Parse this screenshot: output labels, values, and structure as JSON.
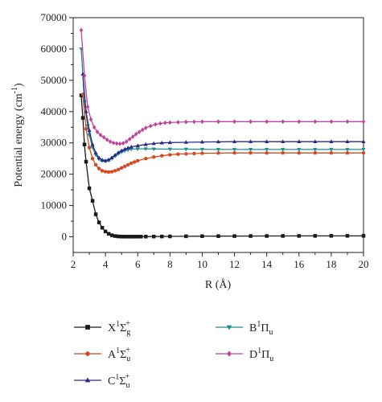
{
  "chart_data": {
    "type": "line",
    "title": "",
    "xlabel": "R (Å)",
    "ylabel": "Potential energy (cm",
    "ylabel_sup": "-1",
    "ylabel_close": ")",
    "xlim": [
      2,
      20
    ],
    "ylim": [
      -5000,
      70000
    ],
    "xticks": [
      2,
      4,
      6,
      8,
      10,
      12,
      14,
      16,
      18,
      20
    ],
    "xtick_labels": [
      "2",
      "4",
      "6",
      "8",
      "10",
      "12",
      "14",
      "16",
      "18",
      "20"
    ],
    "yticks": [
      0,
      10000,
      20000,
      30000,
      40000,
      50000,
      60000,
      70000
    ],
    "ytick_labels": [
      "0",
      "10000",
      "20000",
      "30000",
      "40000",
      "50000",
      "60000",
      "70000"
    ],
    "grid": false,
    "legend_position": "below",
    "series": [
      {
        "name": "X1Σg+",
        "label": {
          "base": "X",
          "sup1": "1",
          "sym": "Σ",
          "sub": "g",
          "sup2": "+"
        },
        "color": "#1a1a1a",
        "marker": "square",
        "points": [
          [
            2.5,
            45200
          ],
          [
            2.6,
            38000
          ],
          [
            2.7,
            29500
          ],
          [
            2.8,
            24000
          ],
          [
            3.0,
            15500
          ],
          [
            3.2,
            11500
          ],
          [
            3.4,
            7200
          ],
          [
            3.6,
            4600
          ],
          [
            3.8,
            2900
          ],
          [
            4.0,
            1700
          ],
          [
            4.2,
            950
          ],
          [
            4.4,
            500
          ],
          [
            4.6,
            250
          ],
          [
            4.8,
            120
          ],
          [
            5.0,
            70
          ],
          [
            5.2,
            50
          ],
          [
            5.4,
            40
          ],
          [
            5.6,
            40
          ],
          [
            5.8,
            45
          ],
          [
            6.0,
            50
          ],
          [
            6.2,
            55
          ],
          [
            6.5,
            70
          ],
          [
            7,
            90
          ],
          [
            7.5,
            110
          ],
          [
            8,
            130
          ],
          [
            9,
            170
          ],
          [
            10,
            200
          ],
          [
            11,
            220
          ],
          [
            12,
            240
          ],
          [
            13,
            250
          ],
          [
            14,
            260
          ],
          [
            15,
            270
          ],
          [
            16,
            280
          ],
          [
            17,
            290
          ],
          [
            18,
            300
          ],
          [
            19,
            300
          ],
          [
            20,
            300
          ]
        ]
      },
      {
        "name": "A1Σu+",
        "label": {
          "base": "A",
          "sup1": "1",
          "sym": "Σ",
          "sub": "u",
          "sup2": "+"
        },
        "color": "#d9481c",
        "marker": "circle",
        "points": [
          [
            2.6,
            45500
          ],
          [
            2.8,
            34500
          ],
          [
            3.0,
            28500
          ],
          [
            3.2,
            25000
          ],
          [
            3.4,
            23000
          ],
          [
            3.6,
            21800
          ],
          [
            3.8,
            21100
          ],
          [
            4.0,
            20800
          ],
          [
            4.2,
            20700
          ],
          [
            4.4,
            20800
          ],
          [
            4.6,
            21100
          ],
          [
            4.8,
            21500
          ],
          [
            5.0,
            22000
          ],
          [
            5.2,
            22500
          ],
          [
            5.4,
            23000
          ],
          [
            5.6,
            23500
          ],
          [
            5.8,
            23900
          ],
          [
            6.0,
            24300
          ],
          [
            6.5,
            25000
          ],
          [
            7,
            25500
          ],
          [
            7.5,
            25900
          ],
          [
            8,
            26200
          ],
          [
            8.5,
            26400
          ],
          [
            9,
            26500
          ],
          [
            9.5,
            26600
          ],
          [
            10,
            26700
          ],
          [
            11,
            26750
          ],
          [
            12,
            26800
          ],
          [
            13,
            26800
          ],
          [
            14,
            26800
          ],
          [
            15,
            26800
          ],
          [
            16,
            26800
          ],
          [
            17,
            26800
          ],
          [
            18,
            26800
          ],
          [
            19,
            26800
          ],
          [
            20,
            26800
          ]
        ]
      },
      {
        "name": "B1Πu",
        "label": {
          "base": "B",
          "sup1": "1",
          "sym": "Π",
          "sub": "u",
          "sup2": ""
        },
        "color": "#1f8f8f",
        "marker": "triangle-down",
        "points": [
          [
            2.5,
            60000
          ],
          [
            2.7,
            43000
          ],
          [
            2.9,
            35500
          ],
          [
            3.0,
            32500
          ],
          [
            3.2,
            28500
          ],
          [
            3.4,
            26200
          ],
          [
            3.6,
            24800
          ],
          [
            3.8,
            24300
          ],
          [
            4.0,
            24200
          ],
          [
            4.2,
            24400
          ],
          [
            4.4,
            25000
          ],
          [
            4.6,
            25800
          ],
          [
            4.8,
            26500
          ],
          [
            5.0,
            27100
          ],
          [
            5.2,
            27500
          ],
          [
            5.4,
            27800
          ],
          [
            5.6,
            28000
          ],
          [
            6.0,
            28100
          ],
          [
            6.5,
            28100
          ],
          [
            7,
            28050
          ],
          [
            8,
            28000
          ],
          [
            9,
            28000
          ],
          [
            10,
            27950
          ],
          [
            11,
            27900
          ],
          [
            12,
            27900
          ],
          [
            13,
            27900
          ],
          [
            14,
            27900
          ],
          [
            15,
            27900
          ],
          [
            16,
            27900
          ],
          [
            17,
            27900
          ],
          [
            18,
            27900
          ],
          [
            19,
            27900
          ],
          [
            20,
            27900
          ]
        ]
      },
      {
        "name": "C1Σu+",
        "label": {
          "base": "C",
          "sup1": "1",
          "sym": "Σ",
          "sub": "u",
          "sup2": "+"
        },
        "color": "#2a2a8c",
        "marker": "triangle-up",
        "points": [
          [
            2.6,
            52000
          ],
          [
            2.8,
            40000
          ],
          [
            3.0,
            34000
          ],
          [
            3.2,
            29500
          ],
          [
            3.4,
            26800
          ],
          [
            3.6,
            25200
          ],
          [
            3.8,
            24500
          ],
          [
            4.0,
            24300
          ],
          [
            4.2,
            24600
          ],
          [
            4.4,
            25300
          ],
          [
            4.6,
            26100
          ],
          [
            4.8,
            26900
          ],
          [
            5.0,
            27500
          ],
          [
            5.2,
            28000
          ],
          [
            5.4,
            28400
          ],
          [
            5.6,
            28700
          ],
          [
            6.0,
            29100
          ],
          [
            6.5,
            29500
          ],
          [
            7,
            29800
          ],
          [
            7.5,
            30000
          ],
          [
            8,
            30100
          ],
          [
            9,
            30200
          ],
          [
            10,
            30300
          ],
          [
            11,
            30350
          ],
          [
            12,
            30400
          ],
          [
            13,
            30400
          ],
          [
            14,
            30400
          ],
          [
            15,
            30400
          ],
          [
            16,
            30400
          ],
          [
            17,
            30400
          ],
          [
            18,
            30400
          ],
          [
            19,
            30400
          ],
          [
            20,
            30400
          ]
        ]
      },
      {
        "name": "D1Πu",
        "label": {
          "base": "D",
          "sup1": "1",
          "sym": "Π",
          "sub": "u",
          "sup2": ""
        },
        "color": "#c2429b",
        "marker": "diamond",
        "points": [
          [
            2.5,
            66000
          ],
          [
            2.7,
            51500
          ],
          [
            2.9,
            41500
          ],
          [
            3.1,
            37500
          ],
          [
            3.3,
            35000
          ],
          [
            3.5,
            33500
          ],
          [
            3.7,
            32500
          ],
          [
            3.9,
            31800
          ],
          [
            4.1,
            31000
          ],
          [
            4.3,
            30400
          ],
          [
            4.5,
            30000
          ],
          [
            4.7,
            29800
          ],
          [
            4.9,
            29700
          ],
          [
            5.1,
            29900
          ],
          [
            5.3,
            30400
          ],
          [
            5.5,
            31200
          ],
          [
            5.7,
            32000
          ],
          [
            5.9,
            32800
          ],
          [
            6.1,
            33500
          ],
          [
            6.3,
            34200
          ],
          [
            6.5,
            34800
          ],
          [
            6.8,
            35400
          ],
          [
            7.1,
            35900
          ],
          [
            7.4,
            36200
          ],
          [
            7.7,
            36400
          ],
          [
            8,
            36500
          ],
          [
            8.5,
            36600
          ],
          [
            9,
            36700
          ],
          [
            9.5,
            36750
          ],
          [
            10,
            36800
          ],
          [
            11,
            36800
          ],
          [
            12,
            36800
          ],
          [
            13,
            36800
          ],
          [
            14,
            36800
          ],
          [
            15,
            36800
          ],
          [
            16,
            36800
          ],
          [
            17,
            36800
          ],
          [
            18,
            36800
          ],
          [
            19,
            36800
          ],
          [
            20,
            36800
          ]
        ]
      }
    ]
  }
}
